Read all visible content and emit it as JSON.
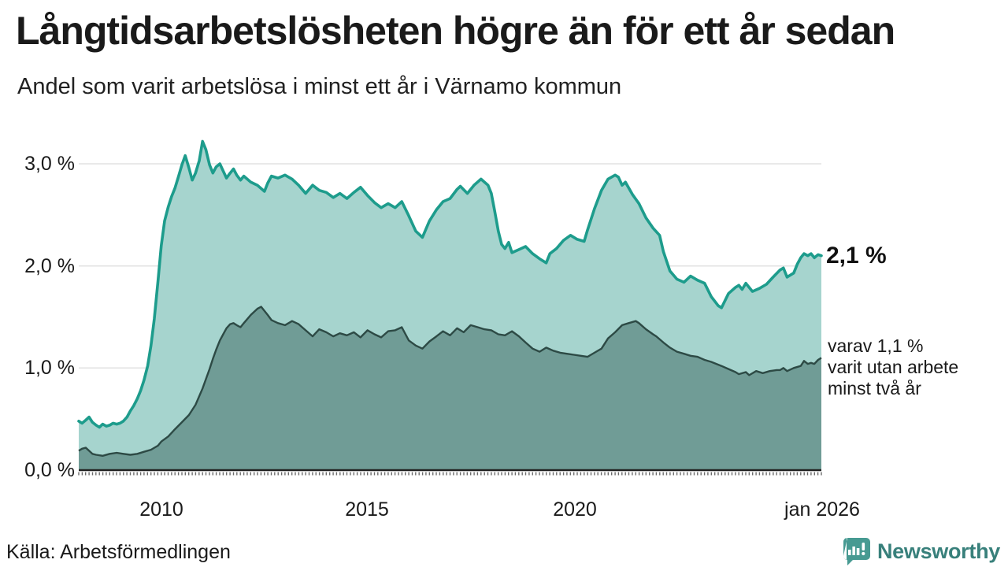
{
  "header": {
    "title": "Långtidsarbetslösheten högre än för ett år sedan",
    "subtitle": "Andel som varit arbetslösa i minst ett år i Värnamo kommun"
  },
  "chart_data": {
    "type": "area",
    "x_unit": "decimal_year",
    "xlim": [
      2008,
      2026
    ],
    "ylim": [
      0,
      3.45
    ],
    "grid": true,
    "gridline_color": "#e2e2e2",
    "axis_color": "#222222",
    "x_ticks": [
      {
        "t": 2010,
        "label": "2010"
      },
      {
        "t": 2015,
        "label": "2015"
      },
      {
        "t": 2020,
        "label": "2020"
      },
      {
        "t": 2026,
        "label": "jan 2026"
      }
    ],
    "y_ticks": [
      {
        "v": 0,
        "label": "0,0 %"
      },
      {
        "v": 1,
        "label": "1,0 %"
      },
      {
        "v": 2,
        "label": "2,0 %"
      },
      {
        "v": 3,
        "label": "3,0 %"
      }
    ],
    "series": [
      {
        "name": "Andel arbetslösa minst ett år",
        "line_color": "#1d9c8c",
        "fill_color": "#a6d4ce",
        "end_value_label": "2,1 %",
        "points": [
          [
            2008.0,
            0.48
          ],
          [
            2008.08,
            0.46
          ],
          [
            2008.17,
            0.49
          ],
          [
            2008.25,
            0.52
          ],
          [
            2008.33,
            0.47
          ],
          [
            2008.42,
            0.44
          ],
          [
            2008.5,
            0.42
          ],
          [
            2008.58,
            0.45
          ],
          [
            2008.67,
            0.43
          ],
          [
            2008.75,
            0.44
          ],
          [
            2008.83,
            0.46
          ],
          [
            2008.92,
            0.45
          ],
          [
            2009.0,
            0.46
          ],
          [
            2009.08,
            0.48
          ],
          [
            2009.17,
            0.52
          ],
          [
            2009.25,
            0.58
          ],
          [
            2009.33,
            0.63
          ],
          [
            2009.42,
            0.7
          ],
          [
            2009.5,
            0.78
          ],
          [
            2009.58,
            0.88
          ],
          [
            2009.67,
            1.02
          ],
          [
            2009.75,
            1.22
          ],
          [
            2009.83,
            1.48
          ],
          [
            2009.92,
            1.85
          ],
          [
            2010.0,
            2.2
          ],
          [
            2010.08,
            2.44
          ],
          [
            2010.17,
            2.58
          ],
          [
            2010.25,
            2.68
          ],
          [
            2010.33,
            2.76
          ],
          [
            2010.42,
            2.88
          ],
          [
            2010.5,
            2.99
          ],
          [
            2010.58,
            3.08
          ],
          [
            2010.67,
            2.96
          ],
          [
            2010.75,
            2.84
          ],
          [
            2010.83,
            2.91
          ],
          [
            2010.92,
            3.03
          ],
          [
            2011.0,
            3.22
          ],
          [
            2011.08,
            3.14
          ],
          [
            2011.17,
            2.99
          ],
          [
            2011.25,
            2.91
          ],
          [
            2011.33,
            2.97
          ],
          [
            2011.42,
            3.0
          ],
          [
            2011.5,
            2.93
          ],
          [
            2011.58,
            2.86
          ],
          [
            2011.67,
            2.91
          ],
          [
            2011.75,
            2.95
          ],
          [
            2011.83,
            2.89
          ],
          [
            2011.92,
            2.84
          ],
          [
            2012.0,
            2.88
          ],
          [
            2012.17,
            2.82
          ],
          [
            2012.33,
            2.79
          ],
          [
            2012.5,
            2.73
          ],
          [
            2012.58,
            2.81
          ],
          [
            2012.67,
            2.88
          ],
          [
            2012.83,
            2.86
          ],
          [
            2013.0,
            2.89
          ],
          [
            2013.17,
            2.85
          ],
          [
            2013.33,
            2.79
          ],
          [
            2013.5,
            2.71
          ],
          [
            2013.67,
            2.79
          ],
          [
            2013.83,
            2.74
          ],
          [
            2014.0,
            2.72
          ],
          [
            2014.17,
            2.67
          ],
          [
            2014.33,
            2.71
          ],
          [
            2014.5,
            2.66
          ],
          [
            2014.67,
            2.72
          ],
          [
            2014.83,
            2.77
          ],
          [
            2015.0,
            2.69
          ],
          [
            2015.17,
            2.62
          ],
          [
            2015.33,
            2.57
          ],
          [
            2015.5,
            2.61
          ],
          [
            2015.67,
            2.57
          ],
          [
            2015.83,
            2.63
          ],
          [
            2016.0,
            2.49
          ],
          [
            2016.17,
            2.34
          ],
          [
            2016.33,
            2.28
          ],
          [
            2016.5,
            2.44
          ],
          [
            2016.67,
            2.55
          ],
          [
            2016.83,
            2.63
          ],
          [
            2017.0,
            2.66
          ],
          [
            2017.17,
            2.75
          ],
          [
            2017.25,
            2.78
          ],
          [
            2017.42,
            2.71
          ],
          [
            2017.58,
            2.79
          ],
          [
            2017.75,
            2.85
          ],
          [
            2017.92,
            2.79
          ],
          [
            2018.0,
            2.71
          ],
          [
            2018.08,
            2.54
          ],
          [
            2018.17,
            2.34
          ],
          [
            2018.25,
            2.21
          ],
          [
            2018.33,
            2.17
          ],
          [
            2018.42,
            2.23
          ],
          [
            2018.5,
            2.13
          ],
          [
            2018.67,
            2.16
          ],
          [
            2018.83,
            2.19
          ],
          [
            2019.0,
            2.12
          ],
          [
            2019.17,
            2.07
          ],
          [
            2019.33,
            2.03
          ],
          [
            2019.42,
            2.12
          ],
          [
            2019.58,
            2.17
          ],
          [
            2019.75,
            2.25
          ],
          [
            2019.92,
            2.3
          ],
          [
            2020.08,
            2.26
          ],
          [
            2020.25,
            2.24
          ],
          [
            2020.33,
            2.35
          ],
          [
            2020.5,
            2.56
          ],
          [
            2020.67,
            2.74
          ],
          [
            2020.83,
            2.85
          ],
          [
            2021.0,
            2.89
          ],
          [
            2021.08,
            2.87
          ],
          [
            2021.17,
            2.79
          ],
          [
            2021.25,
            2.82
          ],
          [
            2021.42,
            2.7
          ],
          [
            2021.58,
            2.61
          ],
          [
            2021.75,
            2.47
          ],
          [
            2021.92,
            2.37
          ],
          [
            2022.08,
            2.3
          ],
          [
            2022.17,
            2.14
          ],
          [
            2022.33,
            1.95
          ],
          [
            2022.5,
            1.87
          ],
          [
            2022.67,
            1.84
          ],
          [
            2022.83,
            1.9
          ],
          [
            2023.0,
            1.86
          ],
          [
            2023.17,
            1.83
          ],
          [
            2023.33,
            1.7
          ],
          [
            2023.5,
            1.61
          ],
          [
            2023.58,
            1.59
          ],
          [
            2023.75,
            1.73
          ],
          [
            2023.92,
            1.79
          ],
          [
            2024.0,
            1.81
          ],
          [
            2024.08,
            1.77
          ],
          [
            2024.17,
            1.83
          ],
          [
            2024.33,
            1.75
          ],
          [
            2024.5,
            1.78
          ],
          [
            2024.67,
            1.82
          ],
          [
            2024.83,
            1.89
          ],
          [
            2025.0,
            1.96
          ],
          [
            2025.08,
            1.98
          ],
          [
            2025.17,
            1.89
          ],
          [
            2025.33,
            1.93
          ],
          [
            2025.42,
            2.02
          ],
          [
            2025.5,
            2.08
          ],
          [
            2025.58,
            2.12
          ],
          [
            2025.67,
            2.1
          ],
          [
            2025.75,
            2.12
          ],
          [
            2025.83,
            2.08
          ],
          [
            2025.92,
            2.11
          ],
          [
            2026.0,
            2.1
          ]
        ]
      },
      {
        "name": "Andel arbetslösa minst två år",
        "line_color": "#2d4a45",
        "fill_color": "#709c96",
        "end_annotation_lines": [
          "varav 1,1 %",
          "varit utan arbete",
          "minst två år"
        ],
        "points": [
          [
            2008.0,
            0.19
          ],
          [
            2008.08,
            0.21
          ],
          [
            2008.17,
            0.22
          ],
          [
            2008.25,
            0.19
          ],
          [
            2008.33,
            0.16
          ],
          [
            2008.42,
            0.15
          ],
          [
            2008.58,
            0.14
          ],
          [
            2008.75,
            0.16
          ],
          [
            2008.92,
            0.17
          ],
          [
            2009.08,
            0.16
          ],
          [
            2009.25,
            0.15
          ],
          [
            2009.42,
            0.16
          ],
          [
            2009.58,
            0.18
          ],
          [
            2009.75,
            0.2
          ],
          [
            2009.92,
            0.24
          ],
          [
            2010.0,
            0.28
          ],
          [
            2010.17,
            0.33
          ],
          [
            2010.33,
            0.4
          ],
          [
            2010.5,
            0.47
          ],
          [
            2010.67,
            0.54
          ],
          [
            2010.83,
            0.64
          ],
          [
            2011.0,
            0.8
          ],
          [
            2011.08,
            0.89
          ],
          [
            2011.17,
            0.99
          ],
          [
            2011.25,
            1.09
          ],
          [
            2011.33,
            1.18
          ],
          [
            2011.42,
            1.27
          ],
          [
            2011.5,
            1.33
          ],
          [
            2011.58,
            1.39
          ],
          [
            2011.67,
            1.43
          ],
          [
            2011.75,
            1.44
          ],
          [
            2011.83,
            1.42
          ],
          [
            2011.92,
            1.4
          ],
          [
            2012.0,
            1.44
          ],
          [
            2012.17,
            1.52
          ],
          [
            2012.33,
            1.58
          ],
          [
            2012.42,
            1.6
          ],
          [
            2012.5,
            1.56
          ],
          [
            2012.58,
            1.52
          ],
          [
            2012.67,
            1.47
          ],
          [
            2012.83,
            1.44
          ],
          [
            2013.0,
            1.42
          ],
          [
            2013.17,
            1.46
          ],
          [
            2013.33,
            1.43
          ],
          [
            2013.5,
            1.37
          ],
          [
            2013.67,
            1.31
          ],
          [
            2013.83,
            1.38
          ],
          [
            2014.0,
            1.35
          ],
          [
            2014.17,
            1.31
          ],
          [
            2014.33,
            1.34
          ],
          [
            2014.5,
            1.32
          ],
          [
            2014.67,
            1.35
          ],
          [
            2014.83,
            1.3
          ],
          [
            2015.0,
            1.37
          ],
          [
            2015.17,
            1.33
          ],
          [
            2015.33,
            1.3
          ],
          [
            2015.5,
            1.36
          ],
          [
            2015.67,
            1.37
          ],
          [
            2015.83,
            1.4
          ],
          [
            2016.0,
            1.27
          ],
          [
            2016.17,
            1.22
          ],
          [
            2016.33,
            1.19
          ],
          [
            2016.5,
            1.26
          ],
          [
            2016.67,
            1.31
          ],
          [
            2016.83,
            1.36
          ],
          [
            2017.0,
            1.32
          ],
          [
            2017.17,
            1.39
          ],
          [
            2017.33,
            1.35
          ],
          [
            2017.5,
            1.42
          ],
          [
            2017.67,
            1.4
          ],
          [
            2017.83,
            1.38
          ],
          [
            2018.0,
            1.37
          ],
          [
            2018.17,
            1.33
          ],
          [
            2018.33,
            1.32
          ],
          [
            2018.5,
            1.36
          ],
          [
            2018.67,
            1.31
          ],
          [
            2018.83,
            1.25
          ],
          [
            2019.0,
            1.19
          ],
          [
            2019.17,
            1.16
          ],
          [
            2019.33,
            1.2
          ],
          [
            2019.5,
            1.17
          ],
          [
            2019.67,
            1.15
          ],
          [
            2019.83,
            1.14
          ],
          [
            2020.0,
            1.13
          ],
          [
            2020.17,
            1.12
          ],
          [
            2020.33,
            1.11
          ],
          [
            2020.5,
            1.15
          ],
          [
            2020.67,
            1.19
          ],
          [
            2020.83,
            1.29
          ],
          [
            2021.0,
            1.35
          ],
          [
            2021.17,
            1.42
          ],
          [
            2021.33,
            1.44
          ],
          [
            2021.5,
            1.46
          ],
          [
            2021.58,
            1.44
          ],
          [
            2021.75,
            1.38
          ],
          [
            2021.92,
            1.33
          ],
          [
            2022.0,
            1.31
          ],
          [
            2022.17,
            1.25
          ],
          [
            2022.33,
            1.2
          ],
          [
            2022.5,
            1.16
          ],
          [
            2022.67,
            1.14
          ],
          [
            2022.83,
            1.12
          ],
          [
            2023.0,
            1.11
          ],
          [
            2023.17,
            1.08
          ],
          [
            2023.33,
            1.06
          ],
          [
            2023.58,
            1.02
          ],
          [
            2023.75,
            0.99
          ],
          [
            2023.92,
            0.96
          ],
          [
            2024.0,
            0.94
          ],
          [
            2024.17,
            0.96
          ],
          [
            2024.25,
            0.93
          ],
          [
            2024.42,
            0.97
          ],
          [
            2024.58,
            0.95
          ],
          [
            2024.75,
            0.97
          ],
          [
            2024.92,
            0.98
          ],
          [
            2025.0,
            0.98
          ],
          [
            2025.08,
            1.0
          ],
          [
            2025.17,
            0.97
          ],
          [
            2025.33,
            1.0
          ],
          [
            2025.5,
            1.02
          ],
          [
            2025.58,
            1.07
          ],
          [
            2025.67,
            1.04
          ],
          [
            2025.75,
            1.05
          ],
          [
            2025.83,
            1.04
          ],
          [
            2025.92,
            1.08
          ],
          [
            2026.0,
            1.1
          ]
        ]
      }
    ]
  },
  "footer": {
    "source": "Källa: Arbetsförmedlingen",
    "brand_name": "Newsworthy",
    "brand_color": "#38807b",
    "brand_icon_color": "#479a92"
  }
}
